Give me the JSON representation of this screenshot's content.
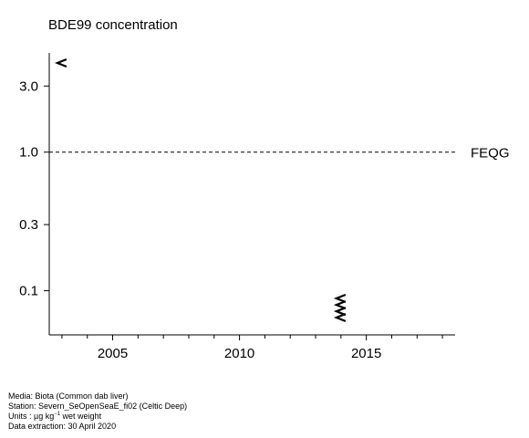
{
  "chart_data": {
    "type": "scatter",
    "title": "BDE99 concentration",
    "xlabel": "",
    "ylabel": "",
    "x_scale": "linear",
    "y_scale": "log",
    "xlim": [
      2002.5,
      2018.5
    ],
    "ylim": [
      0.048,
      5.2
    ],
    "x_ticks": [
      2005,
      2010,
      2015
    ],
    "x_tick_labels": [
      "2005",
      "2010",
      "2015"
    ],
    "y_ticks": [
      0.1,
      0.3,
      1.0,
      3.0
    ],
    "y_tick_labels": [
      "0.1",
      "0.3",
      "1.0",
      "3.0"
    ],
    "reference_line": {
      "label": "FEQG",
      "value": 1.0,
      "style": "dashed"
    },
    "points": [
      {
        "x": 2003,
        "y": 4.4,
        "marker": "<"
      },
      {
        "x": 2014,
        "y": 0.088,
        "marker": "<"
      },
      {
        "x": 2014,
        "y": 0.079,
        "marker": "<"
      },
      {
        "x": 2014,
        "y": 0.071,
        "marker": "<"
      },
      {
        "x": 2014,
        "y": 0.064,
        "marker": "<"
      }
    ],
    "grid": false
  },
  "footer": {
    "media": "Media: Biota (Common dab liver)",
    "station": "Station: Severn_SeOpenSeaE_fi02 (Celtic Deep)",
    "units_prefix": "Units : µg kg",
    "units_exp": "−1",
    "units_suffix": " wet weight",
    "extraction": "Data extraction: 30 April 2020"
  }
}
